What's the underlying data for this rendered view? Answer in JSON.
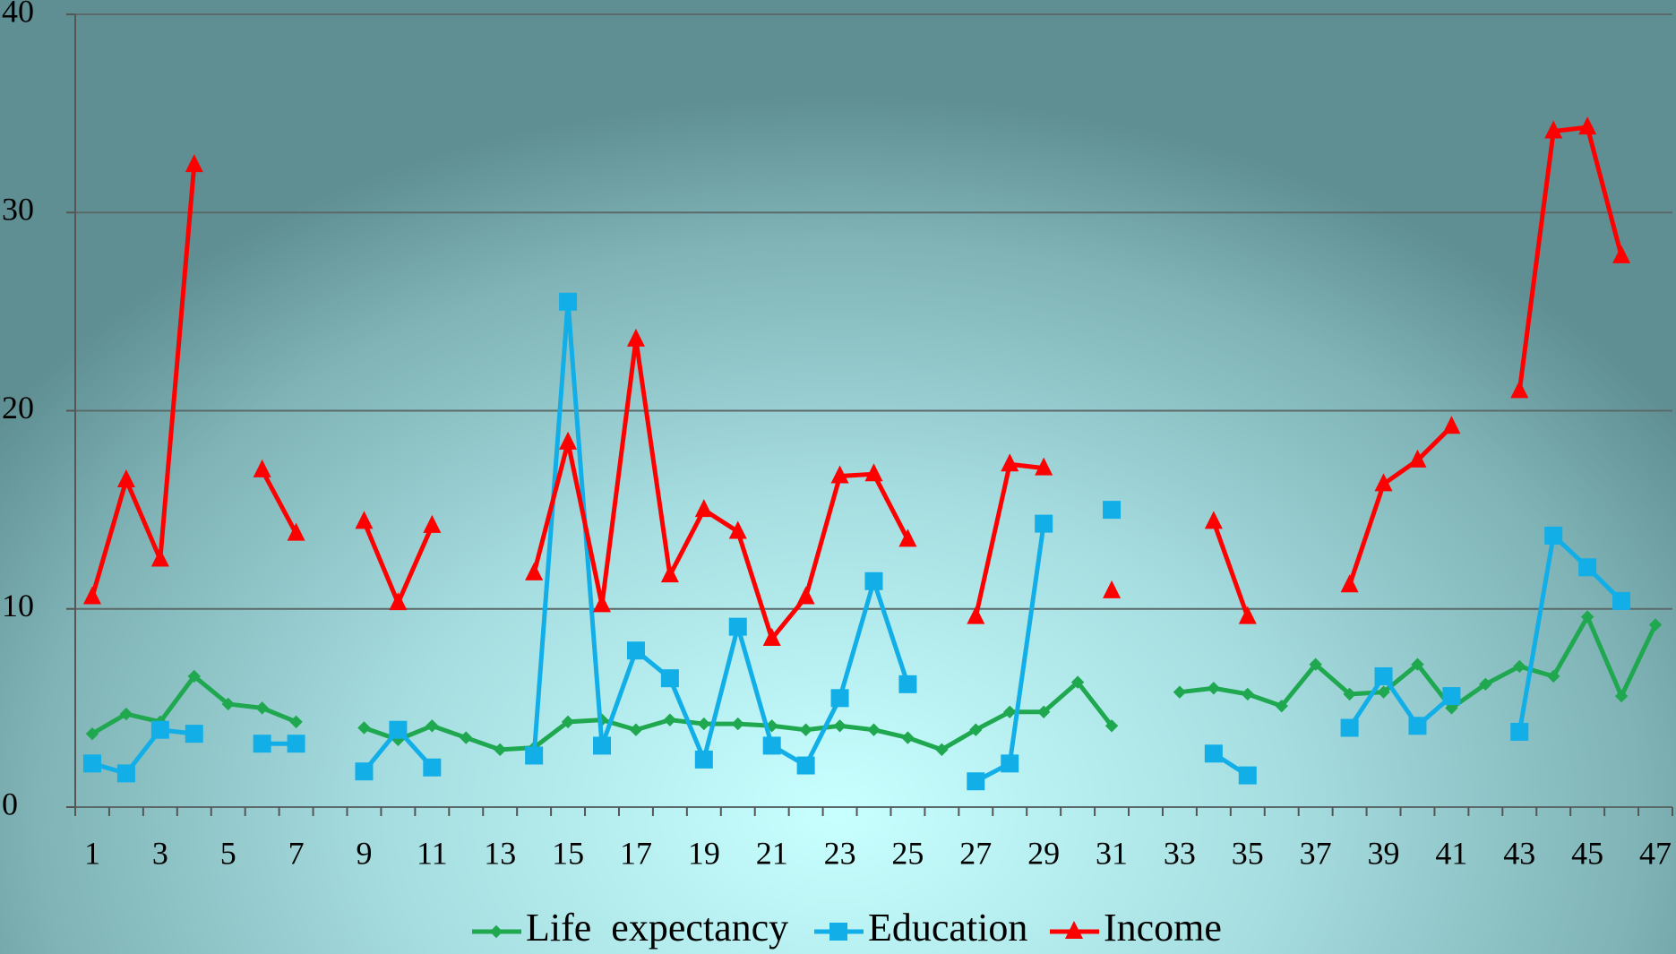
{
  "chart_data": {
    "type": "line",
    "categories": [
      1,
      null,
      3,
      null,
      5,
      null,
      7,
      null,
      9,
      null,
      11,
      null,
      13,
      null,
      15,
      null,
      17,
      null,
      19,
      null,
      21,
      null,
      23,
      null,
      25,
      null,
      27,
      null,
      29,
      null,
      31,
      null,
      33,
      null,
      35,
      null,
      37,
      null,
      39,
      null,
      41,
      null,
      43,
      null,
      45,
      null,
      47
    ],
    "series": [
      {
        "name": "Life  expectancy",
        "color": "#1fa84f",
        "marker": "diamond",
        "values": [
          3.7,
          4.7,
          4.3,
          6.6,
          5.2,
          5.0,
          4.3,
          null,
          4.0,
          3.4,
          4.1,
          3.5,
          2.9,
          3.0,
          4.3,
          4.4,
          3.9,
          4.4,
          4.2,
          4.2,
          4.1,
          3.9,
          4.1,
          3.9,
          3.5,
          2.9,
          3.9,
          4.8,
          4.8,
          6.3,
          4.1,
          null,
          5.8,
          6.0,
          5.7,
          5.1,
          7.2,
          5.7,
          5.8,
          7.2,
          5.0,
          6.2,
          7.1,
          6.6,
          9.6,
          5.6,
          9.2
        ]
      },
      {
        "name": "Education",
        "color": "#12aee8",
        "marker": "square",
        "values": [
          2.2,
          1.7,
          3.9,
          3.7,
          null,
          3.2,
          3.2,
          null,
          1.8,
          3.9,
          2.0,
          null,
          null,
          2.6,
          25.5,
          3.1,
          7.9,
          6.5,
          2.4,
          9.1,
          3.1,
          2.1,
          5.5,
          11.4,
          6.2,
          null,
          1.3,
          2.2,
          14.3,
          null,
          15.0,
          null,
          null,
          2.7,
          1.6,
          null,
          null,
          4.0,
          6.6,
          4.1,
          5.6,
          null,
          3.8,
          13.7,
          12.1,
          10.4,
          null
        ]
      },
      {
        "name": "Income",
        "color": "#ff0000",
        "marker": "triangle",
        "values": [
          10.6,
          16.5,
          12.5,
          32.4,
          null,
          17.0,
          13.8,
          null,
          14.4,
          10.3,
          14.2,
          null,
          null,
          11.8,
          18.4,
          10.2,
          23.6,
          11.7,
          15.0,
          13.9,
          8.5,
          10.6,
          16.7,
          16.8,
          13.5,
          null,
          9.6,
          17.3,
          17.1,
          null,
          10.9,
          null,
          null,
          14.4,
          9.6,
          null,
          null,
          11.2,
          16.3,
          17.5,
          19.2,
          null,
          21.0,
          34.1,
          34.3,
          27.8,
          null
        ]
      }
    ],
    "ylim": [
      0,
      40
    ],
    "yticks": [
      0,
      10,
      20,
      30,
      40
    ],
    "grid": true,
    "legend": "bottom"
  }
}
